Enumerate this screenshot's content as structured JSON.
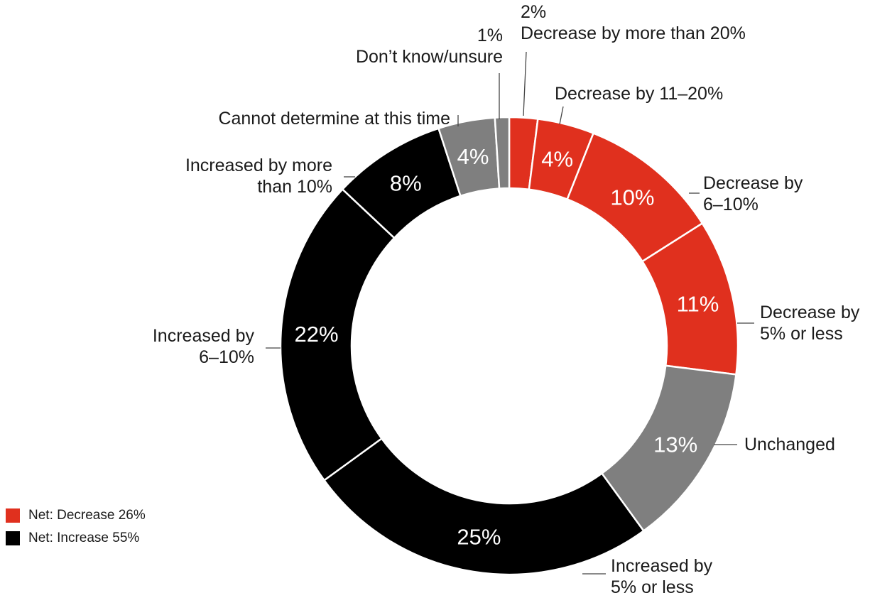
{
  "chart_data": {
    "type": "pie",
    "colors": {
      "decrease": "#e0301e",
      "increase": "#000000",
      "neutral": "#7f7f7f"
    },
    "slices": [
      {
        "label": "Decrease by more than 20%",
        "value": 2,
        "value_label": "2%",
        "group": "decrease"
      },
      {
        "label": "Decrease by 11–20%",
        "value": 4,
        "value_label": "4%",
        "group": "decrease"
      },
      {
        "label": "Decrease by 6–10%",
        "value": 10,
        "value_label": "10%",
        "group": "decrease"
      },
      {
        "label": "Decrease by 5% or less",
        "value": 11,
        "value_label": "11%",
        "group": "decrease"
      },
      {
        "label": "Unchanged",
        "value": 13,
        "value_label": "13%",
        "group": "neutral"
      },
      {
        "label": "Increased by 5% or less",
        "value": 25,
        "value_label": "25%",
        "group": "increase"
      },
      {
        "label": "Increased by 6–10%",
        "value": 22,
        "value_label": "22%",
        "group": "increase"
      },
      {
        "label": "Increased by more than 10%",
        "value": 8,
        "value_label": "8%",
        "group": "increase"
      },
      {
        "label": "Cannot determine at this time",
        "value": 4,
        "value_label": "4%",
        "group": "neutral"
      },
      {
        "label": "Don’t know/unsure",
        "value": 1,
        "value_label": "1%",
        "group": "neutral"
      }
    ],
    "slice_labels_lines": [
      [
        "2%",
        "Decrease by more than 20%"
      ],
      [
        "Decrease by 11–20%"
      ],
      [
        "Decrease by",
        "6–10%"
      ],
      [
        "Decrease by",
        "5% or less"
      ],
      [
        "Unchanged"
      ],
      [
        "Increased by",
        "5% or less"
      ],
      [
        "Increased by",
        "6–10%"
      ],
      [
        "Increased by more",
        "than 10%"
      ],
      [
        "Cannot determine at this time"
      ],
      [
        "1%",
        "Don’t know/unsure"
      ]
    ],
    "legend": [
      {
        "label": "Net: Decrease 26%",
        "color": "#e0301e"
      },
      {
        "label": "Net: Increase 55%",
        "color": "#000000"
      }
    ]
  }
}
